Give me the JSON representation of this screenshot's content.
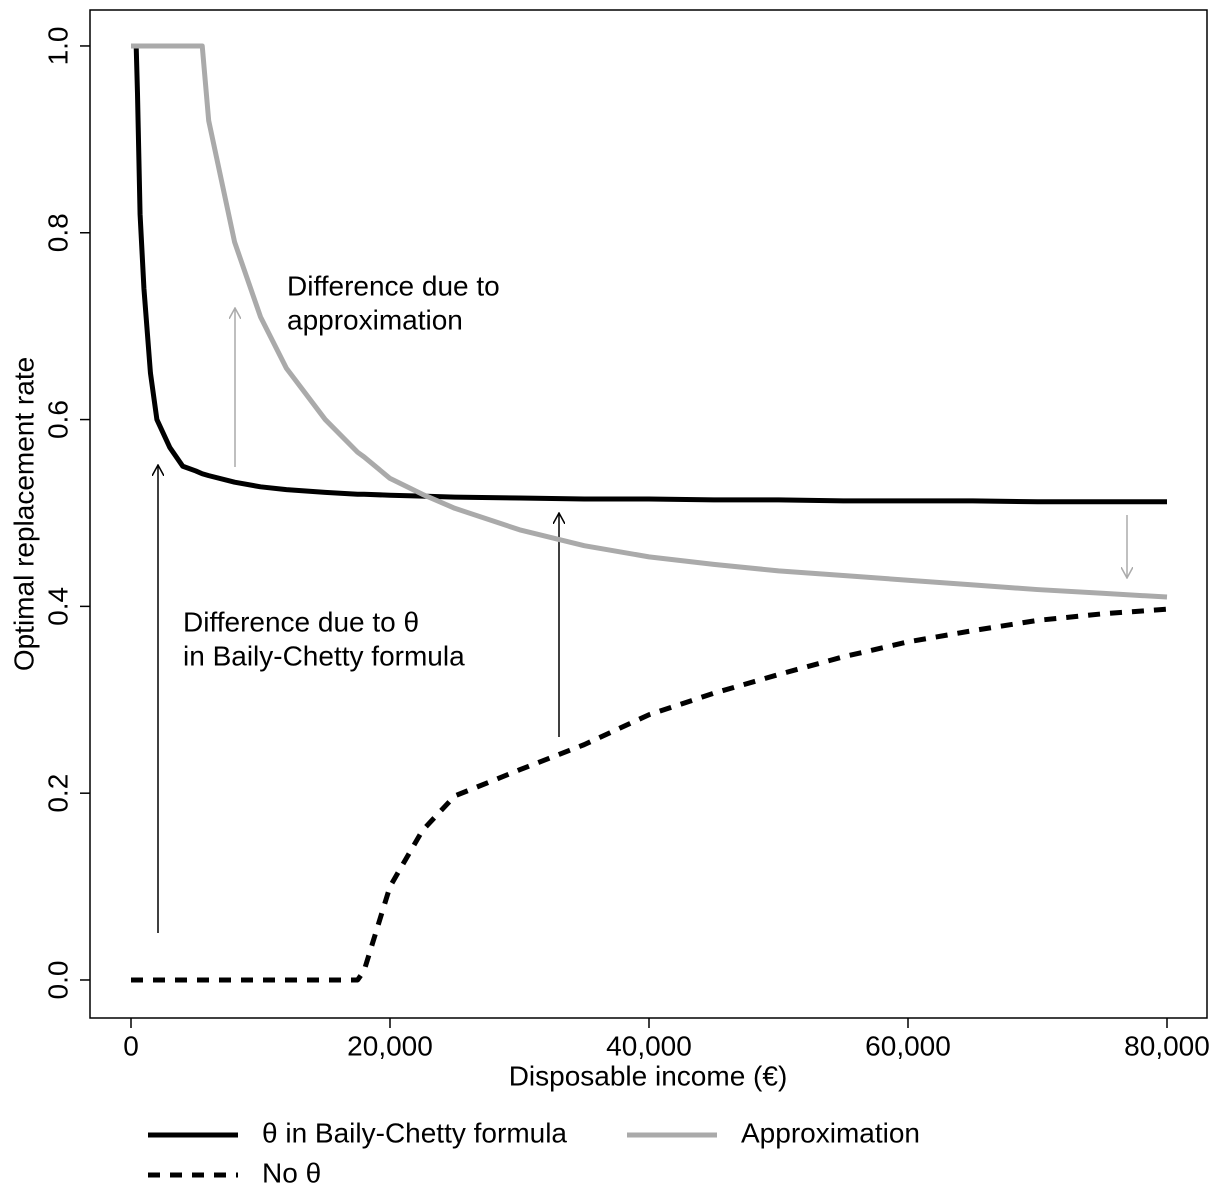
{
  "chart_data": {
    "type": "line",
    "xlabel": "Disposable income (€)",
    "ylabel": "Optimal replacement rate",
    "x": [
      0,
      400,
      500,
      700,
      1000,
      1500,
      2000,
      3000,
      4000,
      5000,
      5500,
      6000,
      8000,
      10000,
      12000,
      15000,
      17500,
      18000,
      20000,
      22500,
      25000,
      30000,
      35000,
      40000,
      45000,
      50000,
      55000,
      60000,
      65000,
      70000,
      75000,
      80000
    ],
    "series": [
      {
        "name": "θ in Baily-Chetty formula",
        "color": "#000000",
        "dash": false,
        "values": [
          1.0,
          1.0,
          0.95,
          0.82,
          0.74,
          0.65,
          0.6,
          0.57,
          0.55,
          0.545,
          0.542,
          0.54,
          0.533,
          0.528,
          0.525,
          0.522,
          0.52,
          0.52,
          0.519,
          0.518,
          0.517,
          0.516,
          0.515,
          0.515,
          0.514,
          0.514,
          0.513,
          0.513,
          0.513,
          0.512,
          0.512,
          0.512
        ]
      },
      {
        "name": "Approximation",
        "color": "#aaaaaa",
        "dash": false,
        "values": [
          1.0,
          1.0,
          1.0,
          1.0,
          1.0,
          1.0,
          1.0,
          1.0,
          1.0,
          1.0,
          1.0,
          0.92,
          0.79,
          0.71,
          0.655,
          0.6,
          0.565,
          0.56,
          0.537,
          0.52,
          0.505,
          0.482,
          0.465,
          0.453,
          0.445,
          0.438,
          0.433,
          0.428,
          0.423,
          0.418,
          0.414,
          0.41
        ]
      },
      {
        "name": "No θ",
        "color": "#000000",
        "dash": true,
        "values": [
          0,
          0,
          0,
          0,
          0,
          0,
          0,
          0,
          0,
          0,
          0,
          0,
          0,
          0,
          0,
          0,
          0,
          0.01,
          0.1,
          0.16,
          0.197,
          0.225,
          0.252,
          0.284,
          0.307,
          0.327,
          0.346,
          0.362,
          0.374,
          0.385,
          0.392,
          0.397
        ]
      }
    ],
    "annotations": [
      {
        "lines": [
          "Difference due to",
          "approximation"
        ],
        "color": "#aaaaaa"
      },
      {
        "lines": [
          "Difference due to θ",
          "in Baily-Chetty formula"
        ],
        "color": "#000000"
      }
    ],
    "xlim": [
      -3166,
      83089
    ],
    "ylim": [
      -0.0407,
      1.0385
    ],
    "xticks": [
      0,
      {
        "value": 20000,
        "label": "20,000"
      },
      {
        "value": 40000,
        "label": "40,000"
      },
      {
        "value": 60000,
        "label": "60,000"
      },
      {
        "value": 80000,
        "label": "80,000"
      }
    ],
    "yticks": [
      {
        "value": 0,
        "label": "0.0"
      },
      0.2,
      0.4,
      0.6,
      0.8,
      {
        "value": 1,
        "label": "1.0"
      }
    ],
    "legend": "bottom"
  }
}
